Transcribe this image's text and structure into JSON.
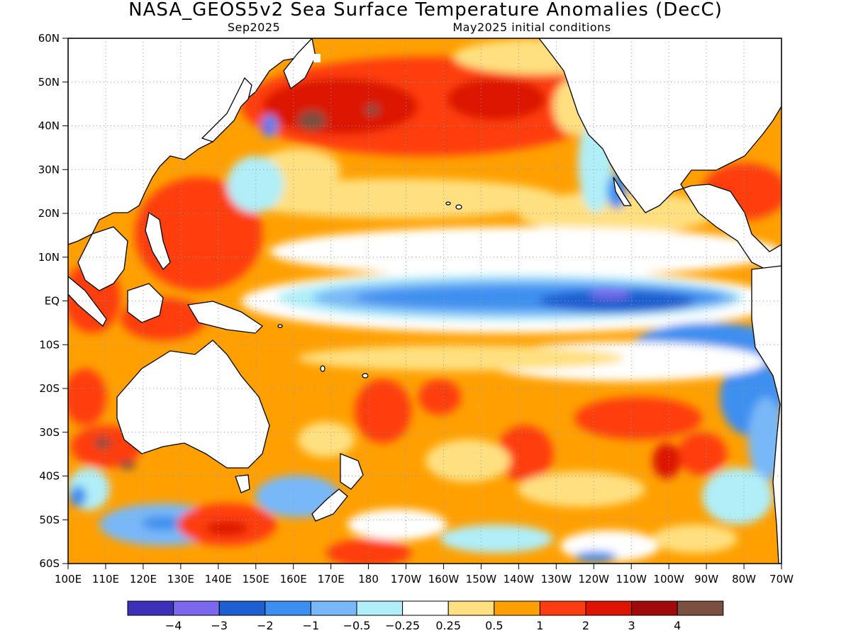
{
  "title": "NASA_GEOS5v2 Sea Surface Temperature Anomalies (DecC)",
  "subtitle_left": "Sep2025",
  "subtitle_right": "May2025 initial conditions",
  "lat_labels": [
    "60N",
    "50N",
    "40N",
    "30N",
    "20N",
    "10N",
    "EQ",
    "10S",
    "20S",
    "30S",
    "40S",
    "50S",
    "60S"
  ],
  "lon_labels": [
    "100E",
    "110E",
    "120E",
    "130E",
    "140E",
    "150E",
    "160E",
    "170E",
    "180",
    "170W",
    "160W",
    "150W",
    "140W",
    "130W",
    "120W",
    "110W",
    "100W",
    "90W",
    "80W",
    "70W"
  ],
  "legend": {
    "colors": [
      "#3c2fb8",
      "#7b68ee",
      "#1e5fd0",
      "#3c8ff0",
      "#78b8f8",
      "#b0eef8",
      "#ffffff",
      "#ffe080",
      "#ffa000",
      "#ff3c0f",
      "#dc1400",
      "#a00a0a",
      "#7a5040"
    ],
    "labels": [
      "−4",
      "−3",
      "−2",
      "−1",
      "−0.5",
      "−0.25",
      "0.25",
      "0.5",
      "1",
      "2",
      "3",
      "4"
    ]
  },
  "colors": {
    "land": "#ffffff",
    "coast": "#000000",
    "grid": "#aaaaaa"
  }
}
